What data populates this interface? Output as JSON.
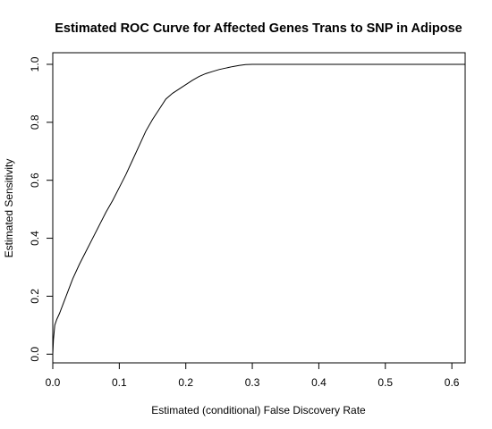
{
  "chart_data": {
    "type": "line",
    "title": "Estimated ROC Curve for Affected Genes Trans to SNP in Adipose",
    "xlabel": "Estimated (conditional) False Discovery Rate",
    "ylabel": "Estimated Sensitivity",
    "xlim": [
      0.0,
      0.62
    ],
    "ylim": [
      -0.03,
      1.04
    ],
    "x_ticks": [
      0.0,
      0.1,
      0.2,
      0.3,
      0.4,
      0.5,
      0.6
    ],
    "x_tick_labels": [
      "0.0",
      "0.1",
      "0.2",
      "0.3",
      "0.4",
      "0.5",
      "0.6"
    ],
    "y_ticks": [
      0.0,
      0.2,
      0.4,
      0.6,
      0.8,
      1.0
    ],
    "y_tick_labels": [
      "0.0",
      "0.2",
      "0.4",
      "0.6",
      "0.8",
      "1.0"
    ],
    "grid": false,
    "line_color": "#000000",
    "series": [
      {
        "x": [
          0.0,
          0.001,
          0.003,
          0.006,
          0.01,
          0.015,
          0.02,
          0.025,
          0.03,
          0.04,
          0.05,
          0.06,
          0.07,
          0.08,
          0.09,
          0.1,
          0.11,
          0.12,
          0.13,
          0.14,
          0.15,
          0.16,
          0.17,
          0.18,
          0.19,
          0.2,
          0.21,
          0.22,
          0.23,
          0.24,
          0.25,
          0.26,
          0.27,
          0.28,
          0.29,
          0.3,
          0.4,
          0.5,
          0.62
        ],
        "y": [
          0.0,
          0.05,
          0.1,
          0.12,
          0.14,
          0.17,
          0.2,
          0.23,
          0.26,
          0.31,
          0.355,
          0.4,
          0.445,
          0.49,
          0.53,
          0.575,
          0.62,
          0.67,
          0.72,
          0.77,
          0.81,
          0.845,
          0.88,
          0.9,
          0.915,
          0.93,
          0.945,
          0.958,
          0.968,
          0.975,
          0.982,
          0.987,
          0.992,
          0.996,
          0.999,
          1.0,
          1.0,
          1.0,
          1.0
        ]
      }
    ]
  }
}
